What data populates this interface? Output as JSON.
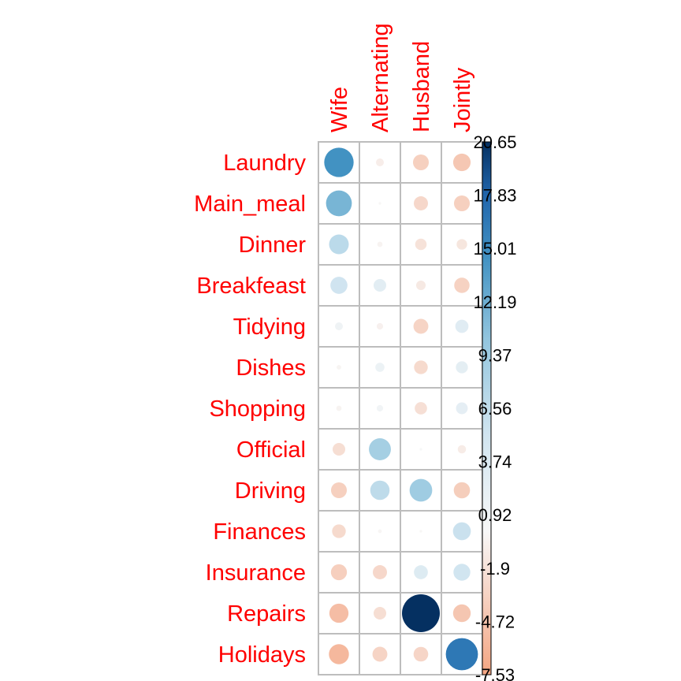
{
  "chart_data": {
    "type": "heatmap",
    "title": "",
    "xlabel": "",
    "ylabel": "",
    "rows": [
      "Laundry",
      "Main_meal",
      "Dinner",
      "Breakfeast",
      "Tidying",
      "Dishes",
      "Shopping",
      "Official",
      "Driving",
      "Finances",
      "Insurance",
      "Repairs",
      "Holidays"
    ],
    "columns": [
      "Wife",
      "Alternating",
      "Husband",
      "Jointly"
    ],
    "values": [
      [
        12.5,
        -0.9,
        -3.6,
        -4.4
      ],
      [
        9.6,
        -0.1,
        -2.9,
        -3.6
      ],
      [
        5.6,
        -0.4,
        -1.9,
        -1.6
      ],
      [
        4.2,
        2.3,
        -1.3,
        -3.4
      ],
      [
        0.9,
        -0.6,
        -3.2,
        2.5
      ],
      [
        -0.3,
        1.2,
        -2.7,
        2.1
      ],
      [
        -0.4,
        0.6,
        -2.2,
        2.0
      ],
      [
        -2.3,
        7.0,
        0.1,
        -1.0
      ],
      [
        -3.6,
        5.4,
        7.4,
        -3.8
      ],
      [
        -2.7,
        -0.2,
        -0.1,
        4.6
      ],
      [
        -3.7,
        -2.9,
        2.8,
        4.1
      ],
      [
        -5.3,
        -2.3,
        20.65,
        -4.5
      ],
      [
        -5.8,
        -3.2,
        -3.1,
        14.9
      ]
    ],
    "legend": {
      "ticks": [
        "20.65",
        "17.83",
        "15.01",
        "12.19",
        "9.37",
        "6.56",
        "3.74",
        "0.92",
        "-1.9",
        "-4.72",
        "-7.53"
      ],
      "min": -7.53,
      "max": 20.65,
      "position": "right"
    },
    "colors": {
      "label": "#ff0000",
      "grid": "#bdbdbd",
      "negative_end": "#f4a582",
      "zero": "#f7f7f7",
      "positive_end": "#053061"
    }
  }
}
